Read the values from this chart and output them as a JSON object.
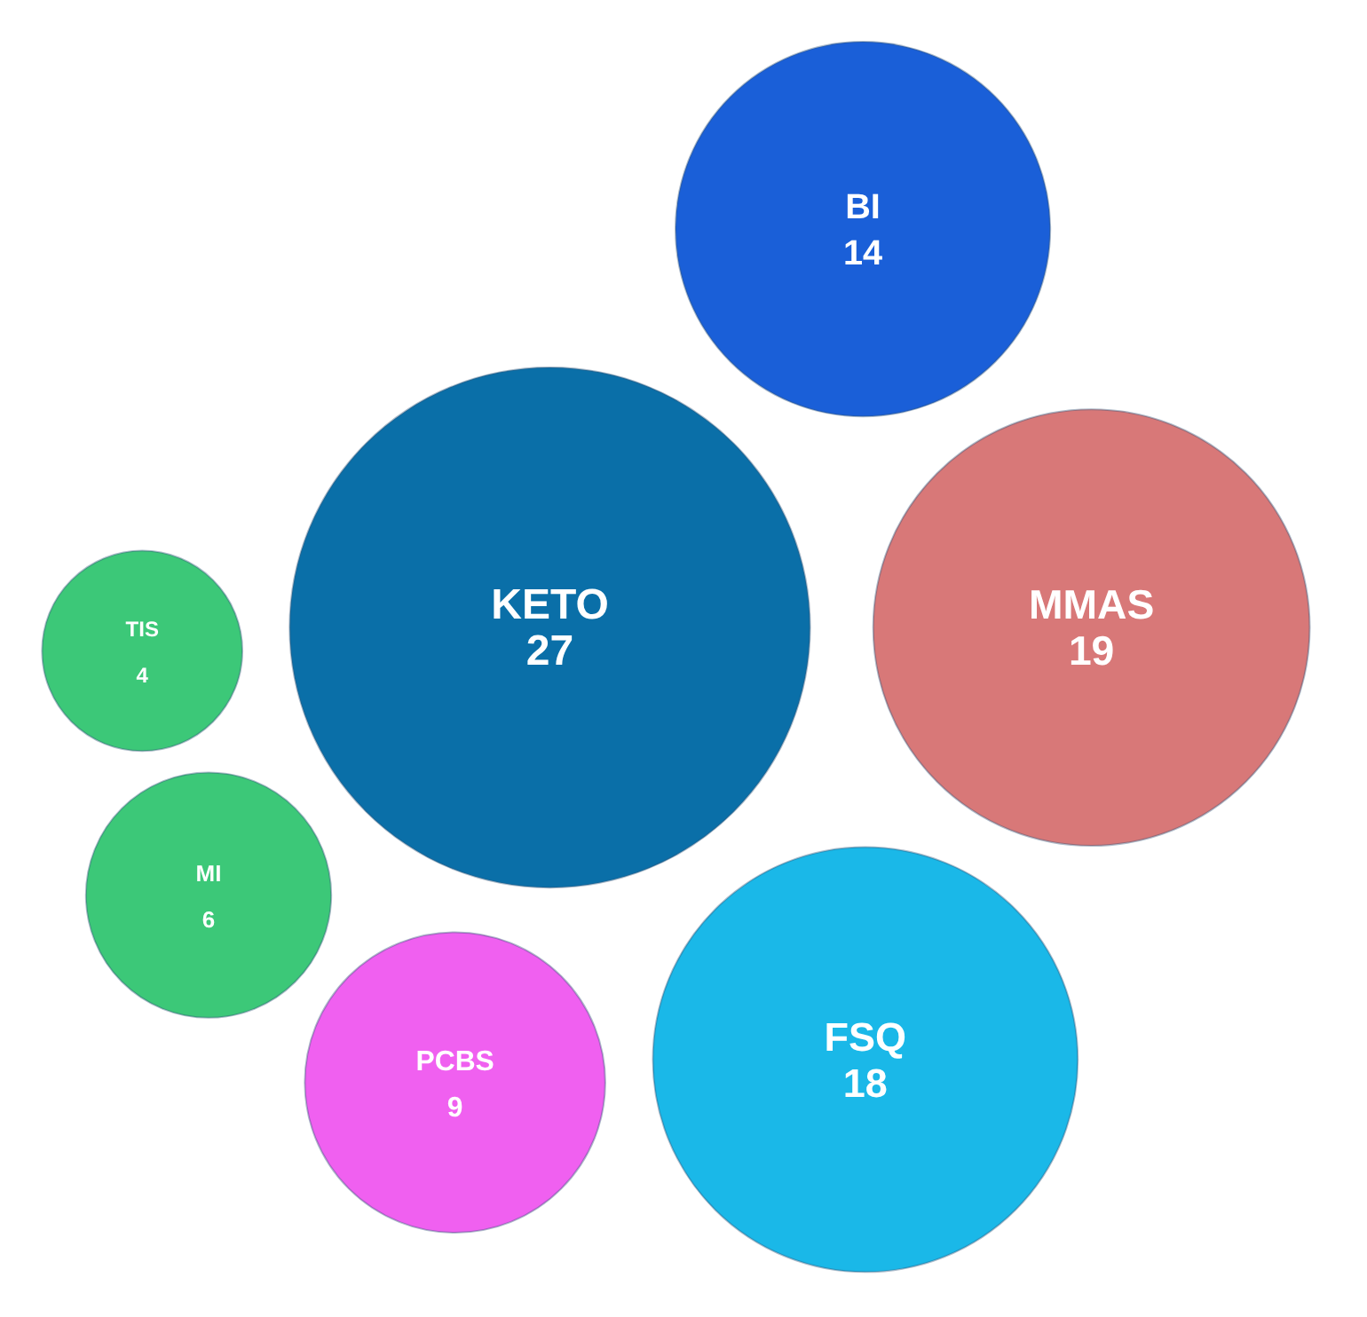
{
  "chart_data": {
    "type": "other",
    "categories": [
      "FSQ",
      "KETO",
      "TIS",
      "PCBS",
      "BI",
      "MMAS",
      "MI"
    ],
    "values": [
      18,
      27,
      4,
      9,
      14,
      19,
      6
    ],
    "colors": [
      "#1ab8e8",
      "#0a6fa8",
      "#3cc878",
      "#f060f0",
      "#1a5fd8",
      "#d87878",
      "#3cc878"
    ],
    "data_labels": true
  }
}
